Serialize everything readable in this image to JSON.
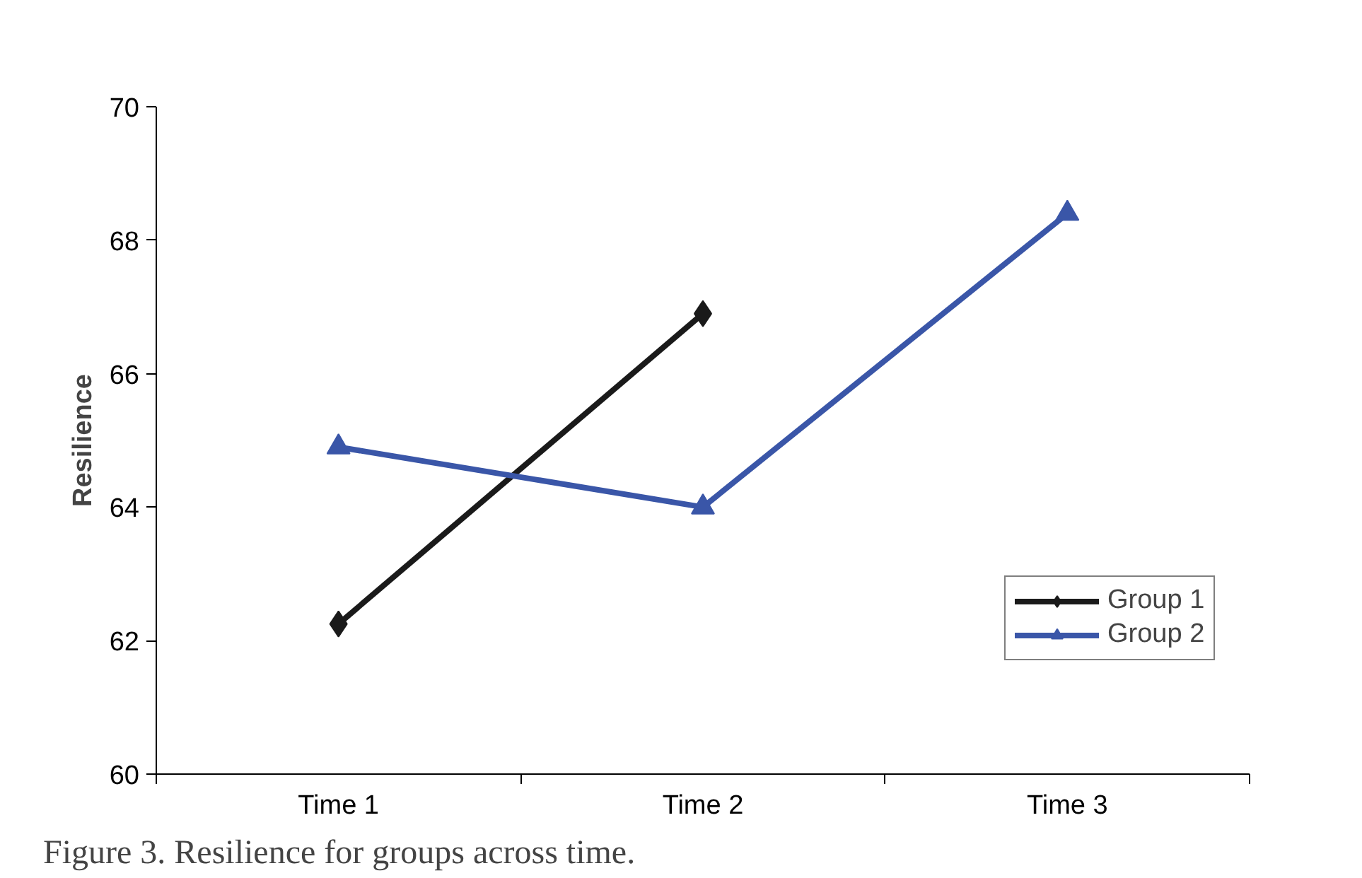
{
  "chart_data": {
    "type": "line",
    "ylabel": "Resilience",
    "categories": [
      "Time 1",
      "Time 2",
      "Time 3"
    ],
    "series": [
      {
        "name": "Group 1",
        "color": "#1a1a1a",
        "marker": "diamond",
        "values": [
          62.25,
          66.9,
          null
        ]
      },
      {
        "name": "Group 2",
        "color": "#3a56a8",
        "marker": "triangle",
        "values": [
          64.9,
          64.0,
          68.4
        ]
      }
    ],
    "ylim": [
      60,
      70
    ],
    "yticks": [
      60,
      62,
      64,
      66,
      68,
      70
    ],
    "grid": false,
    "legend": "right",
    "line_style": "solid",
    "annotations": [
      "Figure 3. Resilience for groups across time."
    ]
  }
}
